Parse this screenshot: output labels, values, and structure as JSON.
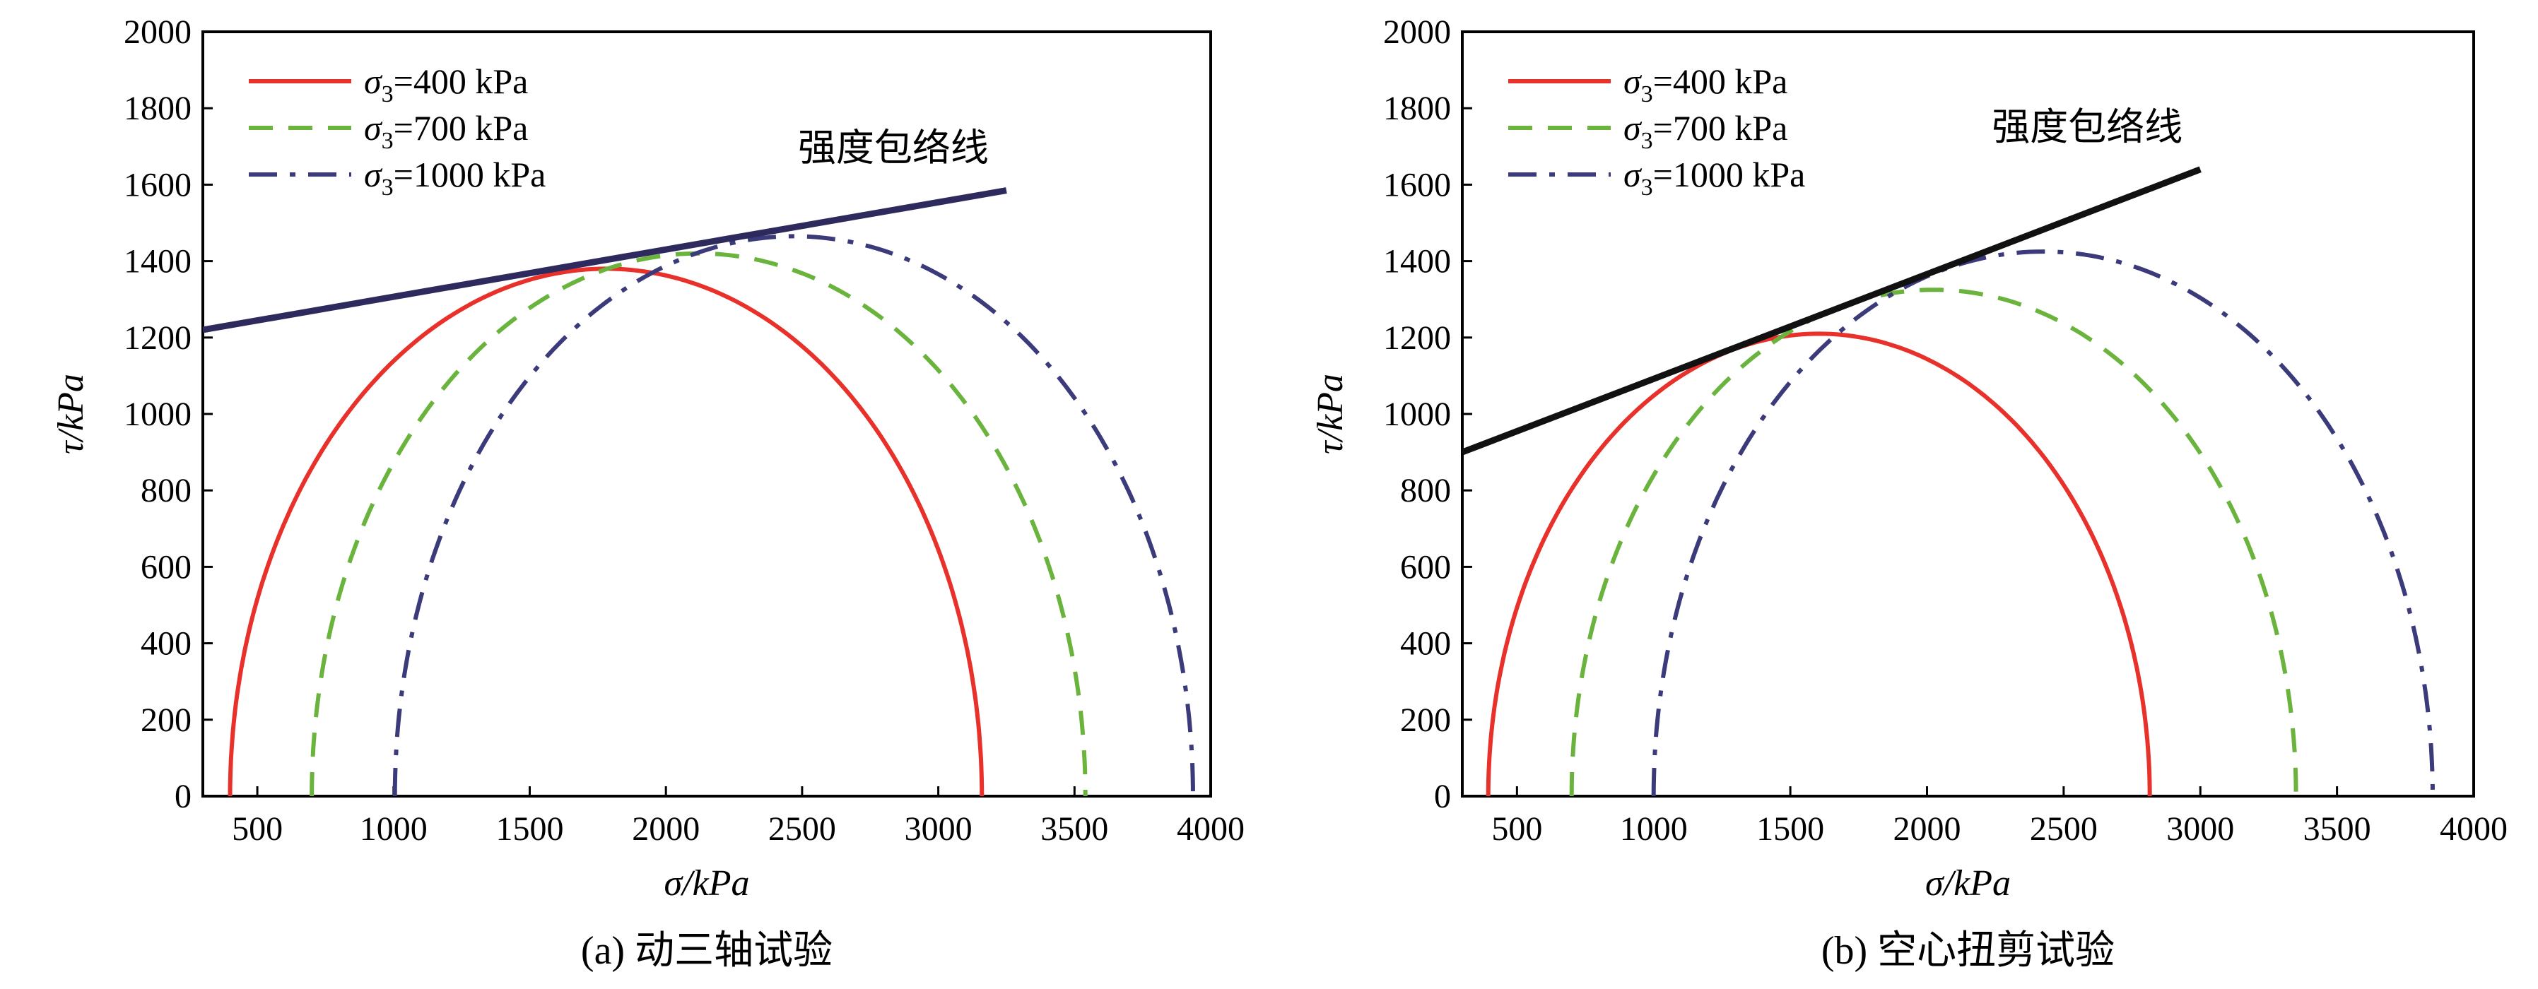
{
  "chart_data": [
    {
      "type": "line",
      "caption": "(a) 动三轴试验",
      "xlabel": "σ/kPa",
      "ylabel": "τ/kPa",
      "xlim": [
        300,
        4000
      ],
      "ylim": [
        0,
        2000
      ],
      "xticks": [
        500,
        1000,
        1500,
        2000,
        2500,
        3000,
        3500,
        4000
      ],
      "yticks": [
        0,
        200,
        400,
        600,
        800,
        1000,
        1200,
        1400,
        1600,
        1800,
        2000
      ],
      "grid": false,
      "legend_position": "top-left",
      "series": [
        {
          "name": "σ3=400 kPa",
          "sigma3": "400",
          "style": "solid",
          "color": "#e8312a",
          "center": 1780,
          "radius": 1380
        },
        {
          "name": "σ3=700 kPa",
          "sigma3": "700",
          "style": "dashed",
          "color": "#6ab43e",
          "center": 2120,
          "radius": 1420
        },
        {
          "name": "σ3=1000 kPa",
          "sigma3": "1000",
          "style": "dashdot",
          "color": "#3b3a7a",
          "center": 2470,
          "radius": 1465
        }
      ],
      "envelope": {
        "label": "强度包络线",
        "color": "#2e2a5e",
        "x": [
          300,
          3250
        ],
        "y": [
          1220,
          1585
        ]
      }
    },
    {
      "type": "line",
      "caption": "(b) 空心扭剪试验",
      "xlabel": "σ/kPa",
      "ylabel": "τ/kPa",
      "xlim": [
        300,
        4000
      ],
      "ylim": [
        0,
        2000
      ],
      "xticks": [
        500,
        1000,
        1500,
        2000,
        2500,
        3000,
        3500,
        4000
      ],
      "yticks": [
        0,
        200,
        400,
        600,
        800,
        1000,
        1200,
        1400,
        1600,
        1800,
        2000
      ],
      "grid": false,
      "legend_position": "top-left",
      "series": [
        {
          "name": "σ3=400 kPa",
          "sigma3": "400",
          "style": "solid",
          "color": "#e8312a",
          "center": 1605,
          "radius": 1210
        },
        {
          "name": "σ3=700 kPa",
          "sigma3": "700",
          "style": "dashed",
          "color": "#6ab43e",
          "center": 2025,
          "radius": 1325
        },
        {
          "name": "σ3=1000 kPa",
          "sigma3": "1000",
          "style": "dashdot",
          "color": "#3b3a7a",
          "center": 2425,
          "radius": 1425
        }
      ],
      "envelope": {
        "label": "强度包络线",
        "color": "#111111",
        "x": [
          300,
          3000
        ],
        "y": [
          900,
          1640
        ]
      }
    }
  ]
}
